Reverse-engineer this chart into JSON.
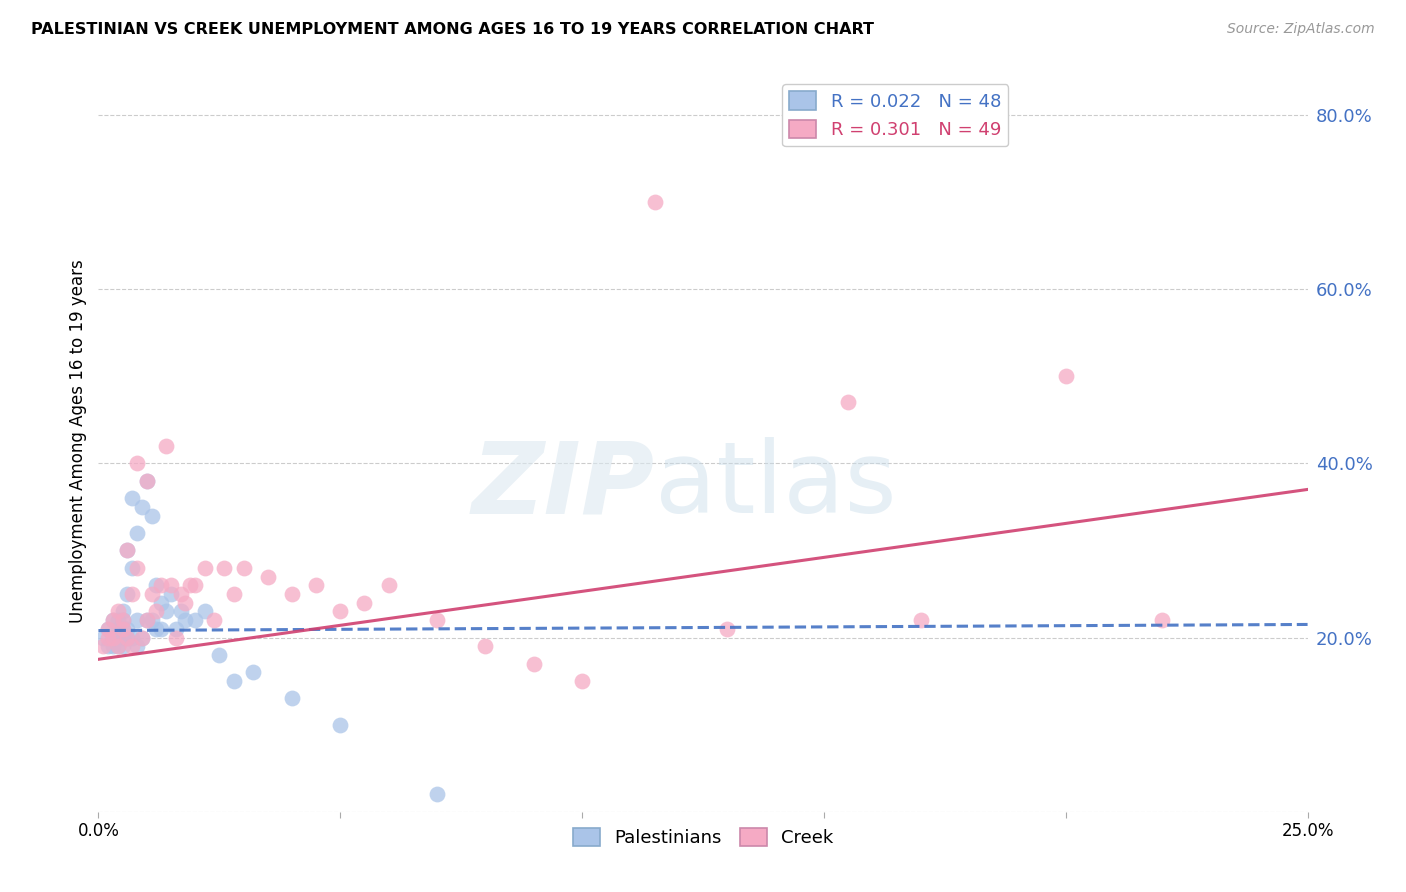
{
  "title": "PALESTINIAN VS CREEK UNEMPLOYMENT AMONG AGES 16 TO 19 YEARS CORRELATION CHART",
  "source": "Source: ZipAtlas.com",
  "ylabel": "Unemployment Among Ages 16 to 19 years",
  "xlim": [
    0.0,
    0.25
  ],
  "ylim": [
    0.0,
    0.85
  ],
  "xticks": [
    0.0,
    0.05,
    0.1,
    0.15,
    0.2,
    0.25
  ],
  "yticks": [
    0.0,
    0.2,
    0.4,
    0.6,
    0.8
  ],
  "ytick_labels": [
    "",
    "20.0%",
    "40.0%",
    "60.0%",
    "80.0%"
  ],
  "xtick_labels": [
    "0.0%",
    "",
    "",
    "",
    "",
    "25.0%"
  ],
  "blue_R": "0.022",
  "blue_N": "48",
  "pink_R": "0.301",
  "pink_N": "49",
  "blue_dot_color": "#aac4e8",
  "pink_dot_color": "#f5aac4",
  "blue_line_color": "#4472c4",
  "pink_line_color": "#d04070",
  "blue_points_x": [
    0.001,
    0.002,
    0.002,
    0.003,
    0.003,
    0.003,
    0.004,
    0.004,
    0.004,
    0.004,
    0.005,
    0.005,
    0.005,
    0.005,
    0.005,
    0.006,
    0.006,
    0.006,
    0.006,
    0.007,
    0.007,
    0.007,
    0.008,
    0.008,
    0.008,
    0.009,
    0.009,
    0.01,
    0.01,
    0.011,
    0.011,
    0.012,
    0.012,
    0.013,
    0.013,
    0.014,
    0.015,
    0.016,
    0.017,
    0.018,
    0.02,
    0.022,
    0.025,
    0.028,
    0.032,
    0.04,
    0.05,
    0.07
  ],
  "blue_points_y": [
    0.2,
    0.21,
    0.19,
    0.22,
    0.2,
    0.19,
    0.21,
    0.2,
    0.19,
    0.22,
    0.21,
    0.23,
    0.2,
    0.19,
    0.22,
    0.3,
    0.25,
    0.21,
    0.2,
    0.28,
    0.36,
    0.2,
    0.22,
    0.19,
    0.32,
    0.35,
    0.2,
    0.38,
    0.22,
    0.34,
    0.22,
    0.21,
    0.26,
    0.24,
    0.21,
    0.23,
    0.25,
    0.21,
    0.23,
    0.22,
    0.22,
    0.23,
    0.18,
    0.15,
    0.16,
    0.13,
    0.1,
    0.02
  ],
  "pink_points_x": [
    0.001,
    0.002,
    0.002,
    0.003,
    0.003,
    0.004,
    0.004,
    0.005,
    0.005,
    0.006,
    0.006,
    0.007,
    0.007,
    0.008,
    0.008,
    0.009,
    0.01,
    0.01,
    0.011,
    0.012,
    0.013,
    0.014,
    0.015,
    0.016,
    0.017,
    0.018,
    0.019,
    0.02,
    0.022,
    0.024,
    0.026,
    0.028,
    0.03,
    0.035,
    0.04,
    0.045,
    0.05,
    0.055,
    0.06,
    0.07,
    0.08,
    0.09,
    0.1,
    0.115,
    0.13,
    0.155,
    0.17,
    0.2,
    0.22
  ],
  "pink_points_y": [
    0.19,
    0.21,
    0.2,
    0.22,
    0.2,
    0.23,
    0.19,
    0.21,
    0.22,
    0.2,
    0.3,
    0.19,
    0.25,
    0.28,
    0.4,
    0.2,
    0.22,
    0.38,
    0.25,
    0.23,
    0.26,
    0.42,
    0.26,
    0.2,
    0.25,
    0.24,
    0.26,
    0.26,
    0.28,
    0.22,
    0.28,
    0.25,
    0.28,
    0.27,
    0.25,
    0.26,
    0.23,
    0.24,
    0.26,
    0.22,
    0.19,
    0.17,
    0.15,
    0.7,
    0.21,
    0.47,
    0.22,
    0.5,
    0.22
  ],
  "blue_trend_x": [
    0.0,
    0.25
  ],
  "blue_trend_y": [
    0.208,
    0.215
  ],
  "pink_trend_x": [
    0.0,
    0.25
  ],
  "pink_trend_y": [
    0.175,
    0.37
  ]
}
